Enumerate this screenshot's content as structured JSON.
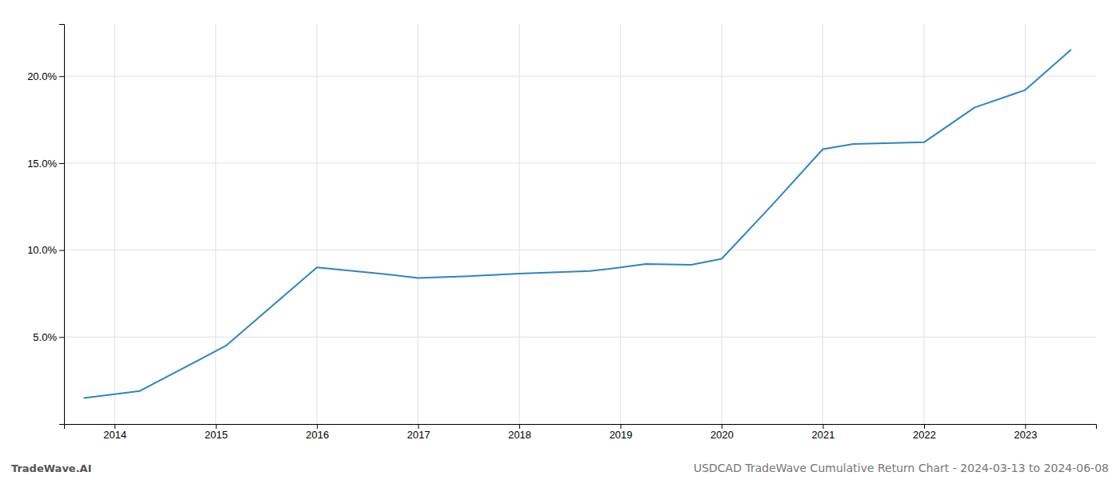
{
  "chart_data": {
    "type": "line",
    "title": "USDCAD TradeWave Cumulative Return Chart - 2024-03-13 to 2024-06-08",
    "annotations": [
      "TradeWave.AI"
    ],
    "x": [
      2013.7,
      2014.25,
      2015.1,
      2016.0,
      2016.7,
      2017.0,
      2017.5,
      2018.0,
      2018.7,
      2019.0,
      2019.25,
      2019.7,
      2020.0,
      2020.5,
      2021.0,
      2021.3,
      2022.0,
      2022.5,
      2023.0,
      2023.45
    ],
    "values": [
      1.5,
      1.9,
      4.5,
      9.0,
      8.6,
      8.4,
      8.5,
      8.65,
      8.8,
      9.0,
      9.2,
      9.15,
      9.5,
      12.6,
      15.8,
      16.1,
      16.2,
      18.2,
      19.2,
      21.5
    ],
    "color": "#2e86c1",
    "xlim": [
      2013.5,
      2023.7
    ],
    "ylim": [
      0.0,
      23.0
    ],
    "xticks": [
      2014,
      2015,
      2016,
      2017,
      2018,
      2019,
      2020,
      2021,
      2022,
      2023
    ],
    "yticks": [
      {
        "value": 5.0,
        "label": "5.0%"
      },
      {
        "value": 10.0,
        "label": "10.0%"
      },
      {
        "value": 15.0,
        "label": "15.0%"
      },
      {
        "value": 20.0,
        "label": "20.0%"
      }
    ],
    "grid": true
  }
}
